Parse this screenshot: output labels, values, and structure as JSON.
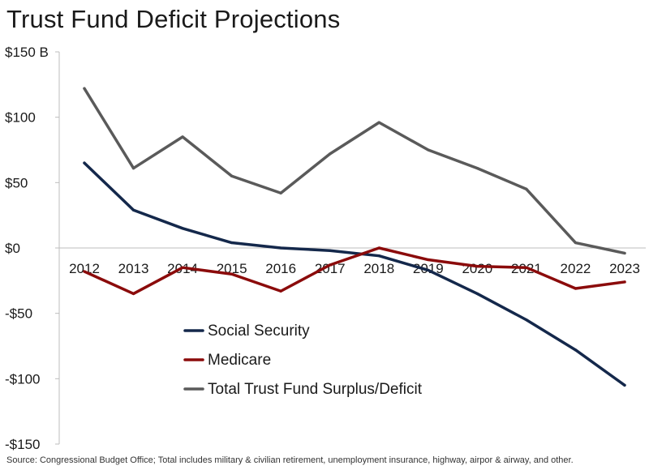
{
  "page_title": "Trust Fund Deficit Projections",
  "source_note": "Source: Congressional Budget Office; Total includes military & civilian retirement, unemployment insurance, highway, airpor & airway, and other.",
  "chart_data": {
    "type": "line",
    "title": "Trust Fund Deficit Projections",
    "xlabel": "",
    "ylabel": "",
    "categories": [
      "2012",
      "2013",
      "2014",
      "2015",
      "2016",
      "2017",
      "2018",
      "2019",
      "2020",
      "2021",
      "2022",
      "2023"
    ],
    "ylim": [
      -150,
      150
    ],
    "yticks": [
      150,
      100,
      50,
      0,
      -50,
      -100,
      -150
    ],
    "ytick_labels": [
      "$150 B",
      "$100",
      "$50",
      "$0",
      "-$50",
      "-$100",
      "-$150"
    ],
    "grid": false,
    "legend_position": "bottom-left",
    "series": [
      {
        "name": "Social Security",
        "color": "#14284b",
        "values": [
          65,
          29,
          15,
          4,
          0,
          -2,
          -6,
          -17,
          -35,
          -55,
          -78,
          -105
        ]
      },
      {
        "name": "Medicare",
        "color": "#8b0b0b",
        "values": [
          -18,
          -35,
          -15,
          -20,
          -33,
          -13,
          0,
          -9,
          -14,
          -15,
          -31,
          -26
        ]
      },
      {
        "name": "Total Trust Fund Surplus/Deficit",
        "color": "#5a5a5a",
        "values": [
          122,
          61,
          85,
          55,
          42,
          72,
          96,
          75,
          61,
          45,
          4,
          -4
        ]
      }
    ]
  }
}
